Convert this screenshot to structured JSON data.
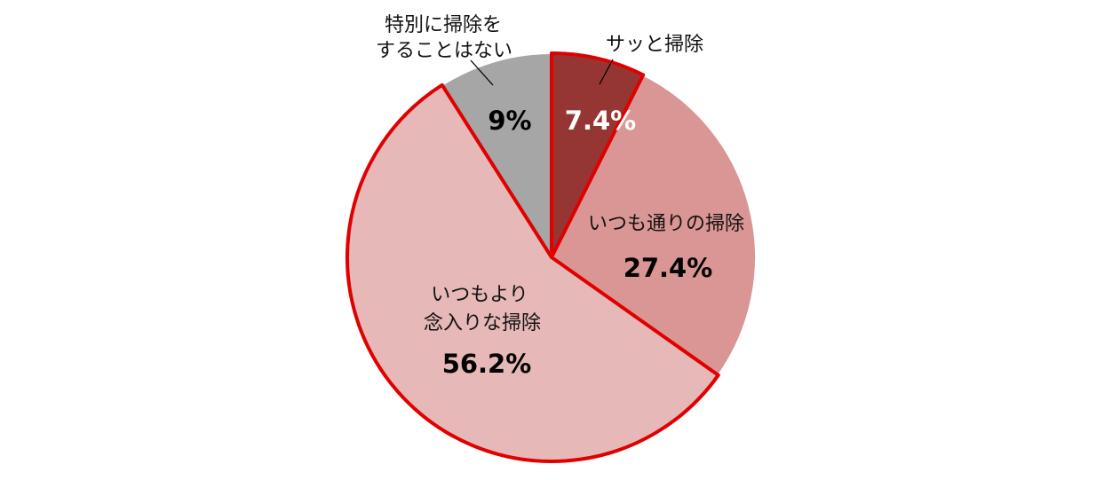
{
  "chart_data": {
    "type": "pie",
    "title": "",
    "slices": [
      {
        "label_lines": [
          "サッと掃除"
        ],
        "value": 7.4,
        "value_label": "7.4%",
        "color": "#963634",
        "value_text_color": "#ffffff",
        "highlight": true
      },
      {
        "label_lines": [
          "いつも通りの掃除"
        ],
        "value": 27.4,
        "value_label": "27.4%",
        "color": "#DA9694",
        "value_text_color": "#000000",
        "highlight": false
      },
      {
        "label_lines": [
          "いつもより",
          "念入りな掃除"
        ],
        "value": 56.2,
        "value_label": "56.2%",
        "color": "#E6B8B7",
        "value_text_color": "#000000",
        "highlight": true
      },
      {
        "label_lines": [
          "特別に掃除を",
          "することはない"
        ],
        "value": 9,
        "value_label": "9%",
        "color": "#A6A6A6",
        "value_text_color": "#000000",
        "highlight": false
      }
    ],
    "highlight_color": "#E00000",
    "legend": "none"
  }
}
